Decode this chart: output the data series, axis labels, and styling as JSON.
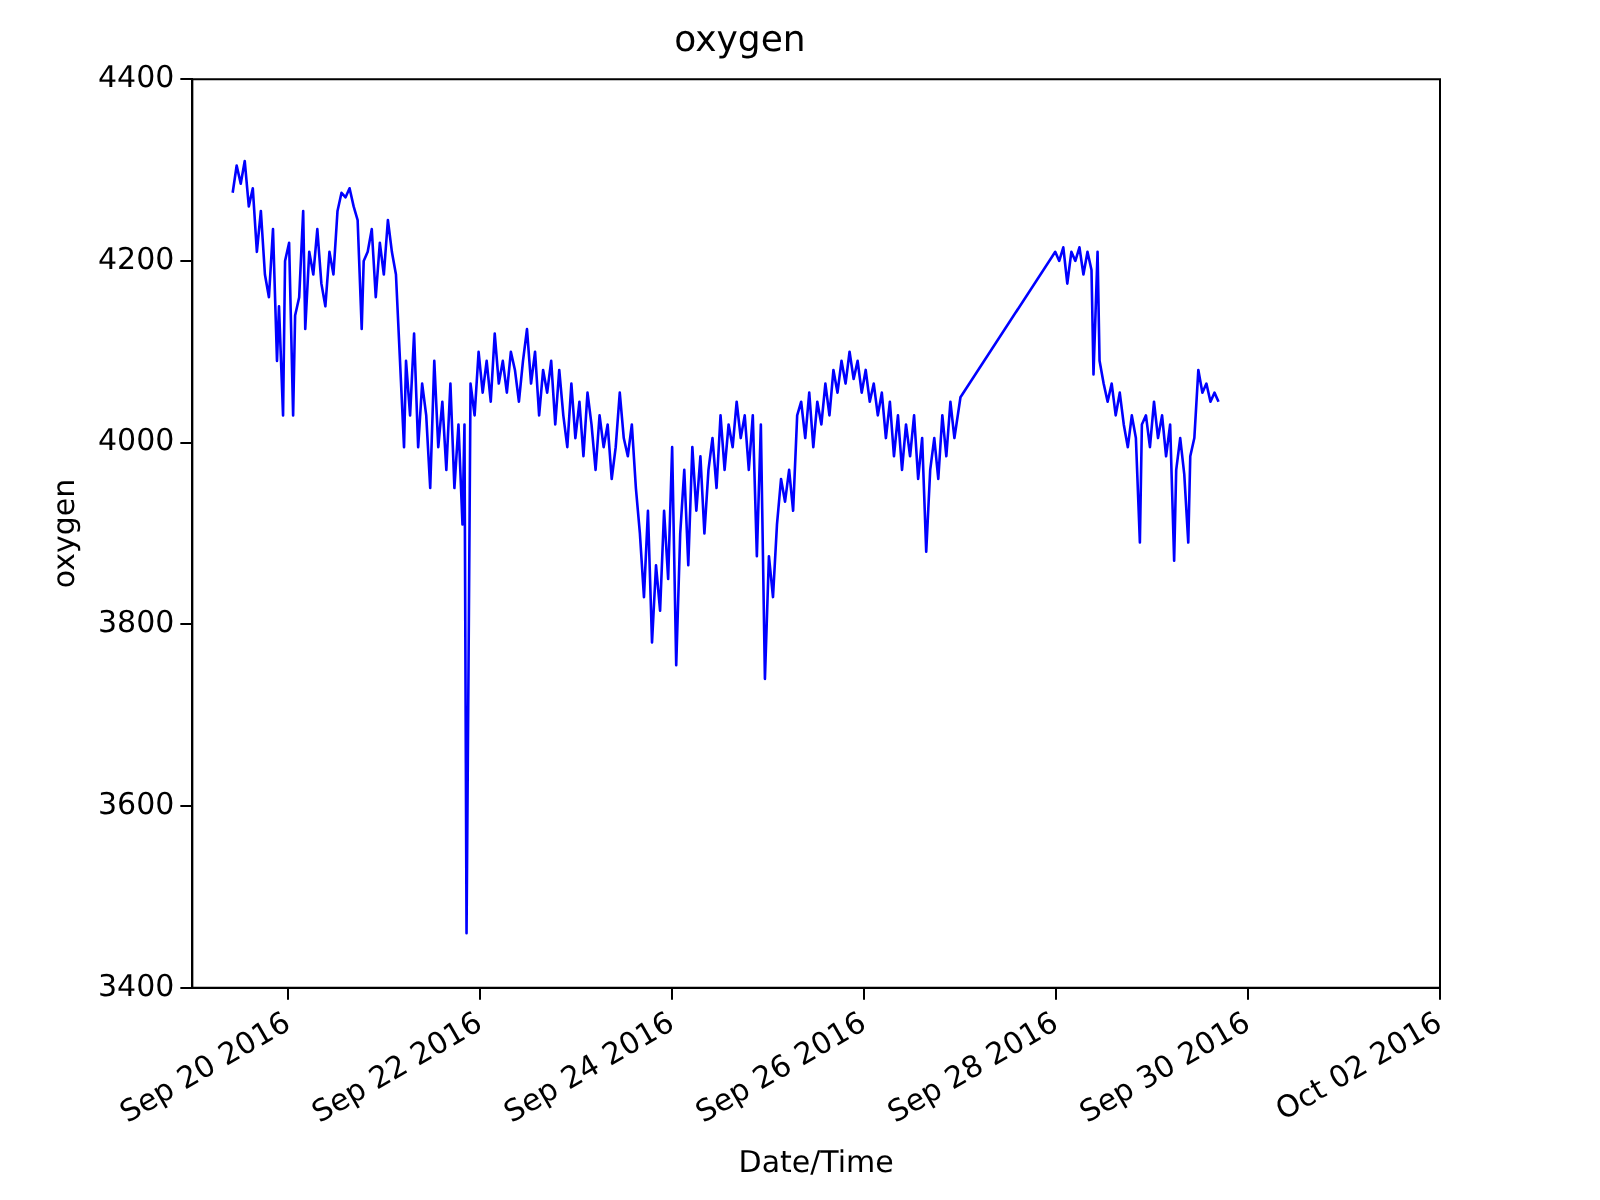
{
  "chart_data": {
    "type": "line",
    "title": "oxygen",
    "xlabel": "Date/Time",
    "ylabel": "oxygen",
    "xlim": [
      "2016-09-19",
      "2016-10-02"
    ],
    "xticks": [
      {
        "value": "2016-09-20",
        "label": "Sep 20 2016"
      },
      {
        "value": "2016-09-22",
        "label": "Sep 22 2016"
      },
      {
        "value": "2016-09-24",
        "label": "Sep 24 2016"
      },
      {
        "value": "2016-09-26",
        "label": "Sep 26 2016"
      },
      {
        "value": "2016-09-28",
        "label": "Sep 28 2016"
      },
      {
        "value": "2016-09-30",
        "label": "Sep 30 2016"
      },
      {
        "value": "2016-10-02",
        "label": "Oct 02 2016"
      }
    ],
    "ylim": [
      3400,
      4400
    ],
    "yticks": [
      3400,
      3600,
      3800,
      4000,
      4200,
      4400
    ],
    "grid": false,
    "legend": false,
    "marker": "none",
    "line_style": "solid",
    "x": [
      "2016-09-19T10:05",
      "2016-09-19T11:05",
      "2016-09-19T12:06",
      "2016-09-19T13:06",
      "2016-09-19T14:07",
      "2016-09-19T15:07",
      "2016-09-19T16:08",
      "2016-09-19T17:08",
      "2016-09-19T18:09",
      "2016-09-19T19:09",
      "2016-09-19T20:10",
      "2016-09-19T21:10",
      "2016-09-19T21:40",
      "2016-09-19T22:41",
      "2016-09-19T23:11",
      "2016-09-20T00:12",
      "2016-09-20T01:12",
      "2016-09-20T01:42",
      "2016-09-20T02:43",
      "2016-09-20T03:43",
      "2016-09-20T04:14",
      "2016-09-20T05:14",
      "2016-09-20T06:15",
      "2016-09-20T07:15",
      "2016-09-20T08:16",
      "2016-09-20T09:16",
      "2016-09-20T10:17",
      "2016-09-20T11:17",
      "2016-09-20T12:18",
      "2016-09-20T13:18",
      "2016-09-20T14:19",
      "2016-09-20T15:19",
      "2016-09-20T16:20",
      "2016-09-20T17:20",
      "2016-09-20T18:21",
      "2016-09-20T18:51",
      "2016-09-20T19:51",
      "2016-09-20T20:52",
      "2016-09-20T21:52",
      "2016-09-20T22:53",
      "2016-09-20T23:53",
      "2016-09-21T00:54",
      "2016-09-21T01:54",
      "2016-09-21T02:55",
      "2016-09-21T04:56",
      "2016-09-21T05:26",
      "2016-09-21T06:27",
      "2016-09-21T07:27",
      "2016-09-21T08:28",
      "2016-09-21T09:28",
      "2016-09-21T10:29",
      "2016-09-21T11:29",
      "2016-09-21T12:30",
      "2016-09-21T13:30",
      "2016-09-21T14:31",
      "2016-09-21T15:31",
      "2016-09-21T16:32",
      "2016-09-21T17:32",
      "2016-09-21T18:33",
      "2016-09-21T19:33",
      "2016-09-21T20:03",
      "2016-09-21T20:34",
      "2016-09-21T21:04",
      "2016-09-21T21:34",
      "2016-09-21T22:35",
      "2016-09-21T23:35",
      "2016-09-22T00:36",
      "2016-09-22T01:36",
      "2016-09-22T02:37",
      "2016-09-22T03:37",
      "2016-09-22T04:38",
      "2016-09-22T05:38",
      "2016-09-22T06:39",
      "2016-09-22T07:39",
      "2016-09-22T08:40",
      "2016-09-22T09:40",
      "2016-09-22T10:41",
      "2016-09-22T11:41",
      "2016-09-22T12:42",
      "2016-09-22T13:42",
      "2016-09-22T14:43",
      "2016-09-22T15:43",
      "2016-09-22T16:44",
      "2016-09-22T17:44",
      "2016-09-22T18:45",
      "2016-09-22T19:45",
      "2016-09-22T20:46",
      "2016-09-22T21:46",
      "2016-09-22T22:47",
      "2016-09-22T23:47",
      "2016-09-23T00:48",
      "2016-09-23T01:48",
      "2016-09-23T02:49",
      "2016-09-23T03:49",
      "2016-09-23T04:50",
      "2016-09-23T05:50",
      "2016-09-23T06:51",
      "2016-09-23T07:51",
      "2016-09-23T08:52",
      "2016-09-23T09:52",
      "2016-09-23T10:53",
      "2016-09-23T11:53",
      "2016-09-23T12:54",
      "2016-09-23T13:54",
      "2016-09-23T14:55",
      "2016-09-23T15:55",
      "2016-09-23T16:56",
      "2016-09-23T17:56",
      "2016-09-23T18:57",
      "2016-09-23T19:57",
      "2016-09-23T20:58",
      "2016-09-23T21:58",
      "2016-09-23T22:59",
      "2016-09-23T23:59",
      "2016-09-24T01:00",
      "2016-09-24T02:00",
      "2016-09-24T03:01",
      "2016-09-24T04:01",
      "2016-09-24T05:02",
      "2016-09-24T06:02",
      "2016-09-24T07:03",
      "2016-09-24T08:03",
      "2016-09-24T09:04",
      "2016-09-24T10:04",
      "2016-09-24T11:05",
      "2016-09-24T12:05",
      "2016-09-24T13:06",
      "2016-09-24T14:06",
      "2016-09-24T15:07",
      "2016-09-24T16:07",
      "2016-09-24T17:08",
      "2016-09-24T18:08",
      "2016-09-24T19:09",
      "2016-09-24T20:09",
      "2016-09-24T21:10",
      "2016-09-24T22:10",
      "2016-09-24T23:11",
      "2016-09-25T00:11",
      "2016-09-25T01:12",
      "2016-09-25T02:12",
      "2016-09-25T03:13",
      "2016-09-25T04:13",
      "2016-09-25T05:14",
      "2016-09-25T06:14",
      "2016-09-25T07:15",
      "2016-09-25T08:15",
      "2016-09-25T09:16",
      "2016-09-25T10:16",
      "2016-09-25T11:17",
      "2016-09-25T12:17",
      "2016-09-25T13:18",
      "2016-09-25T14:18",
      "2016-09-25T15:19",
      "2016-09-25T16:19",
      "2016-09-25T17:20",
      "2016-09-25T18:20",
      "2016-09-25T19:21",
      "2016-09-25T20:21",
      "2016-09-25T21:22",
      "2016-09-25T22:22",
      "2016-09-25T23:23",
      "2016-09-26T00:23",
      "2016-09-26T01:24",
      "2016-09-26T02:24",
      "2016-09-26T03:25",
      "2016-09-26T04:25",
      "2016-09-26T05:26",
      "2016-09-26T06:26",
      "2016-09-26T07:27",
      "2016-09-26T08:27",
      "2016-09-26T09:28",
      "2016-09-26T10:28",
      "2016-09-26T11:29",
      "2016-09-26T12:29",
      "2016-09-26T13:30",
      "2016-09-26T14:30",
      "2016-09-26T15:31",
      "2016-09-26T16:31",
      "2016-09-26T17:32",
      "2016-09-26T18:32",
      "2016-09-26T19:33",
      "2016-09-26T20:33",
      "2016-09-26T21:34",
      "2016-09-26T22:34",
      "2016-09-27T00:05",
      "2016-09-27T23:47",
      "2016-09-28T00:47",
      "2016-09-28T01:48",
      "2016-09-28T02:48",
      "2016-09-28T03:49",
      "2016-09-28T04:49",
      "2016-09-28T05:50",
      "2016-09-28T06:50",
      "2016-09-28T07:51",
      "2016-09-28T08:51",
      "2016-09-28T09:21",
      "2016-09-28T10:22",
      "2016-09-28T10:52",
      "2016-09-28T11:53",
      "2016-09-28T12:53",
      "2016-09-28T13:54",
      "2016-09-28T14:54",
      "2016-09-28T15:55",
      "2016-09-28T16:55",
      "2016-09-28T17:56",
      "2016-09-28T18:56",
      "2016-09-28T19:57",
      "2016-09-28T20:57",
      "2016-09-28T21:27",
      "2016-09-28T22:28",
      "2016-09-28T23:28",
      "2016-09-29T00:29",
      "2016-09-29T01:29",
      "2016-09-29T02:30",
      "2016-09-29T03:30",
      "2016-09-29T04:31",
      "2016-09-29T05:31",
      "2016-09-29T06:02",
      "2016-09-29T07:02",
      "2016-09-29T08:03",
      "2016-09-29T09:03",
      "2016-09-29T09:33",
      "2016-09-29T10:34",
      "2016-09-29T11:34",
      "2016-09-29T12:35",
      "2016-09-29T13:35",
      "2016-09-29T14:36",
      "2016-09-29T15:36",
      "2016-09-29T16:37"
    ],
    "series": [
      {
        "color": "#0000ff",
        "values": [
          4275,
          4305,
          4285,
          4310,
          4260,
          4280,
          4210,
          4255,
          4185,
          4160,
          4235,
          4090,
          4150,
          4030,
          4200,
          4220,
          4030,
          4140,
          4160,
          4255,
          4125,
          4210,
          4185,
          4235,
          4175,
          4150,
          4210,
          4185,
          4255,
          4275,
          4270,
          4280,
          4260,
          4245,
          4125,
          4200,
          4210,
          4235,
          4160,
          4220,
          4185,
          4245,
          4210,
          4185,
          3995,
          4090,
          4030,
          4120,
          3995,
          4065,
          4030,
          3950,
          4090,
          3995,
          4045,
          3970,
          4065,
          3950,
          4020,
          3910,
          4020,
          3460,
          3755,
          4065,
          4030,
          4100,
          4055,
          4090,
          4045,
          4120,
          4065,
          4090,
          4055,
          4100,
          4080,
          4045,
          4090,
          4125,
          4065,
          4100,
          4030,
          4080,
          4055,
          4090,
          4020,
          4080,
          4030,
          3995,
          4065,
          4005,
          4045,
          3985,
          4055,
          4020,
          3970,
          4030,
          3995,
          4020,
          3960,
          3995,
          4055,
          4005,
          3985,
          4020,
          3950,
          3900,
          3830,
          3925,
          3780,
          3865,
          3815,
          3925,
          3850,
          3995,
          3755,
          3900,
          3970,
          3865,
          3995,
          3925,
          3985,
          3900,
          3970,
          4005,
          3950,
          4030,
          3970,
          4020,
          3995,
          4045,
          4005,
          4030,
          3970,
          4030,
          3875,
          4020,
          3740,
          3875,
          3830,
          3910,
          3960,
          3935,
          3970,
          3925,
          4030,
          4045,
          4005,
          4055,
          3995,
          4045,
          4020,
          4065,
          4030,
          4080,
          4055,
          4090,
          4065,
          4100,
          4070,
          4090,
          4055,
          4080,
          4045,
          4065,
          4030,
          4055,
          4005,
          4045,
          3985,
          4030,
          3970,
          4020,
          3985,
          4030,
          3960,
          4005,
          3880,
          3970,
          4005,
          3960,
          4030,
          3985,
          4045,
          4005,
          4050,
          4210,
          4200,
          4215,
          4175,
          4210,
          4200,
          4215,
          4185,
          4210,
          4190,
          4075,
          4210,
          4090,
          4065,
          4045,
          4065,
          4030,
          4055,
          4020,
          3995,
          4030,
          4005,
          3890,
          4020,
          4030,
          3995,
          4045,
          4005,
          4030,
          3985,
          4020,
          3870,
          3970,
          4005,
          3965,
          3890,
          3985,
          4005,
          4080,
          4055,
          4065,
          4045,
          4055,
          4045
        ]
      }
    ]
  }
}
